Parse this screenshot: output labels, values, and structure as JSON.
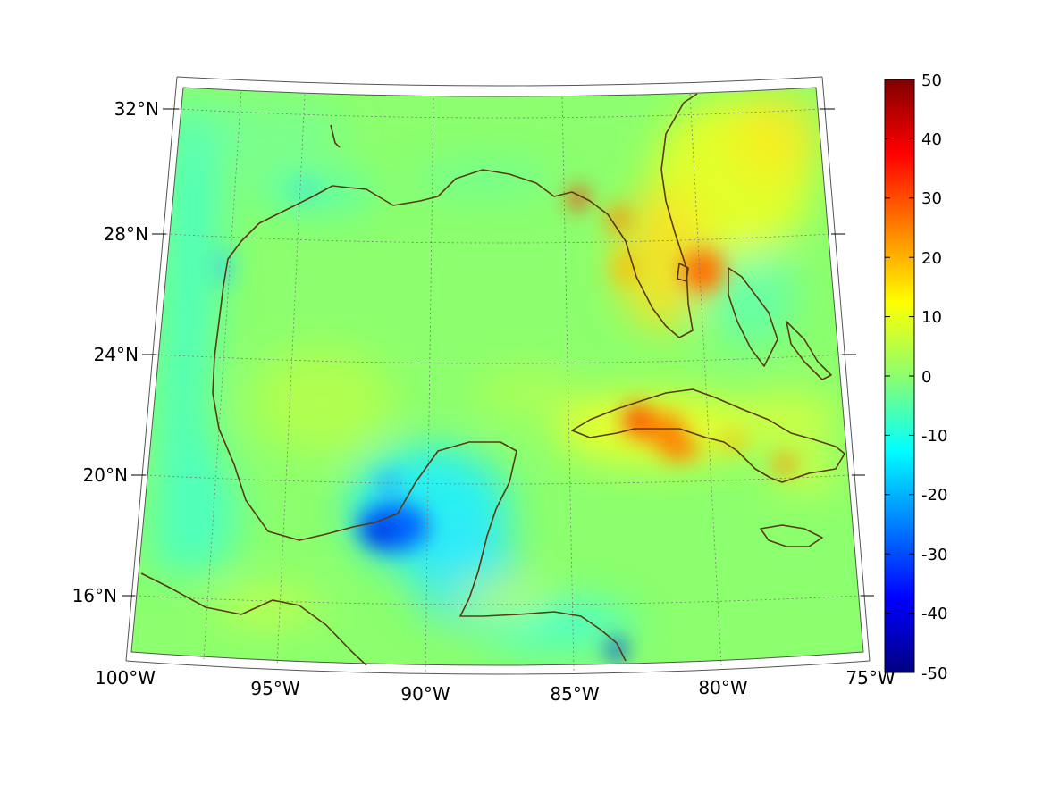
{
  "map": {
    "lat_labels": [
      "32°N",
      "28°N",
      "24°N",
      "20°N",
      "16°N"
    ],
    "lon_labels": [
      "100°W",
      "95°W",
      "90°W",
      "85°W",
      "80°W",
      "75°W"
    ],
    "colorbar": {
      "ticks": [
        "50",
        "40",
        "30",
        "20",
        "10",
        "0",
        "-10",
        "-20",
        "-30",
        "-40",
        "-50"
      ],
      "range": [
        -50,
        50
      ],
      "colormap": "jet"
    },
    "colors": {
      "background_field": "#8cff6e",
      "coastline": "#5a3a12",
      "gridline": "#7a7a7a"
    }
  }
}
